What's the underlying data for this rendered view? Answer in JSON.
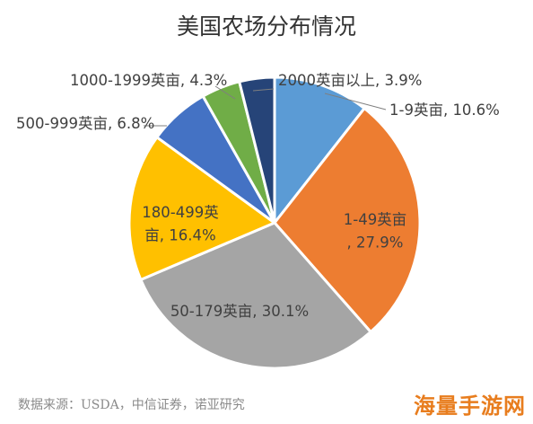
{
  "chart_data": {
    "type": "pie",
    "title": "美国农场分布情况",
    "slices": [
      {
        "label": "1-9英亩, 10.6%",
        "value": 10.6,
        "color": "#5b9bd5"
      },
      {
        "label": "1-49英亩, 27.9%",
        "value": 27.9,
        "color": "#ed7d31"
      },
      {
        "label": "50-179英亩, 30.1%",
        "value": 30.1,
        "color": "#a5a5a5"
      },
      {
        "label": "180-499英亩, 16.4%",
        "value": 16.4,
        "color": "#ffc000"
      },
      {
        "label": "500-999英亩, 6.8%",
        "value": 6.8,
        "color": "#4472c4"
      },
      {
        "label": "1000-1999英亩, 4.3%",
        "value": 4.3,
        "color": "#70ad47"
      },
      {
        "label": "2000英亩以上, 3.9%",
        "value": 3.9,
        "color": "#264478"
      }
    ],
    "legend": "none",
    "source": "数据来源：USDA，中信证券，诺亚研究"
  },
  "watermark": "海量手游网"
}
